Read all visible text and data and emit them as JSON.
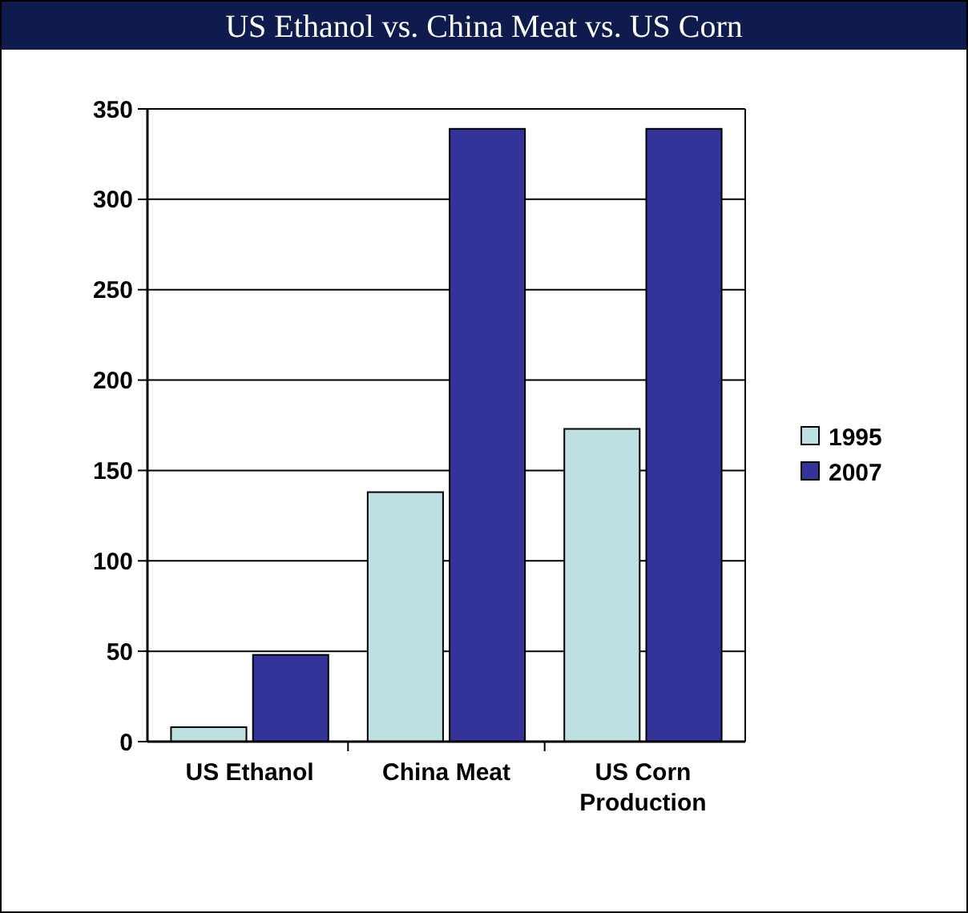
{
  "chart_data": {
    "type": "bar",
    "title": "US Ethanol vs. China Meat vs. US Corn",
    "categories": [
      "US Ethanol",
      "China Meat",
      "US Corn Production"
    ],
    "series": [
      {
        "name": "1995",
        "color": "#bde0e2",
        "values": [
          8,
          138,
          173
        ]
      },
      {
        "name": "2007",
        "color": "#333399",
        "values": [
          48,
          339,
          339
        ]
      }
    ],
    "ylim": [
      0,
      350
    ],
    "yticks": [
      0,
      50,
      100,
      150,
      200,
      250,
      300,
      350
    ],
    "grid": "y",
    "legend": "right"
  }
}
